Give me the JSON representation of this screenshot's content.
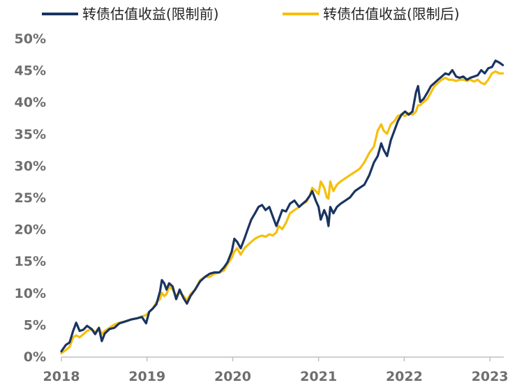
{
  "chart_data": {
    "type": "line",
    "title": "",
    "xlabel": "",
    "ylabel": "",
    "ylim": [
      0,
      50
    ],
    "xlim": [
      "2018-01-01",
      "2023-03-01"
    ],
    "y_tick_values": [
      0,
      5,
      10,
      15,
      20,
      25,
      30,
      35,
      40,
      45,
      50
    ],
    "y_tick_labels": [
      "0%",
      "5%",
      "10%",
      "15%",
      "20%",
      "25%",
      "30%",
      "35%",
      "40%",
      "45%",
      "50%"
    ],
    "x_tick_values": [
      "2018-01-01",
      "2019-01-01",
      "2020-01-01",
      "2021-01-01",
      "2022-01-01",
      "2023-01-01"
    ],
    "x_tick_labels": [
      "2018",
      "2019",
      "2020",
      "2021",
      "2022",
      "2023"
    ],
    "grid": false,
    "legend_position": "top",
    "series": [
      {
        "name": "转债估值收益(限制前)",
        "color": "#1a3461",
        "points": [
          [
            "2018-01-01",
            0.8
          ],
          [
            "2018-01-20",
            1.8
          ],
          [
            "2018-02-05",
            2.2
          ],
          [
            "2018-02-20",
            4.0
          ],
          [
            "2018-03-05",
            5.3
          ],
          [
            "2018-03-20",
            4.0
          ],
          [
            "2018-04-05",
            4.2
          ],
          [
            "2018-04-20",
            4.8
          ],
          [
            "2018-05-10",
            4.3
          ],
          [
            "2018-05-25",
            3.5
          ],
          [
            "2018-06-10",
            4.5
          ],
          [
            "2018-06-22",
            2.4
          ],
          [
            "2018-07-05",
            3.6
          ],
          [
            "2018-07-25",
            4.3
          ],
          [
            "2018-08-15",
            4.5
          ],
          [
            "2018-09-05",
            5.2
          ],
          [
            "2018-10-01",
            5.5
          ],
          [
            "2018-10-25",
            5.8
          ],
          [
            "2018-11-20",
            6.0
          ],
          [
            "2018-12-10",
            6.2
          ],
          [
            "2018-12-28",
            5.2
          ],
          [
            "2019-01-10",
            7.0
          ],
          [
            "2019-01-25",
            7.5
          ],
          [
            "2019-02-10",
            8.2
          ],
          [
            "2019-02-25",
            10.2
          ],
          [
            "2019-03-05",
            12.0
          ],
          [
            "2019-03-15",
            11.5
          ],
          [
            "2019-03-25",
            10.5
          ],
          [
            "2019-04-05",
            11.5
          ],
          [
            "2019-04-20",
            11.0
          ],
          [
            "2019-05-05",
            9.0
          ],
          [
            "2019-05-20",
            10.5
          ],
          [
            "2019-06-05",
            9.2
          ],
          [
            "2019-06-20",
            8.3
          ],
          [
            "2019-07-05",
            9.5
          ],
          [
            "2019-07-25",
            10.5
          ],
          [
            "2019-08-15",
            11.8
          ],
          [
            "2019-09-05",
            12.5
          ],
          [
            "2019-09-25",
            13.0
          ],
          [
            "2019-10-15",
            13.2
          ],
          [
            "2019-11-05",
            13.2
          ],
          [
            "2019-11-25",
            14.0
          ],
          [
            "2019-12-10",
            14.8
          ],
          [
            "2019-12-28",
            16.5
          ],
          [
            "2020-01-08",
            18.5
          ],
          [
            "2020-01-20",
            18.0
          ],
          [
            "2020-02-04",
            17.0
          ],
          [
            "2020-02-20",
            18.5
          ],
          [
            "2020-03-05",
            20.0
          ],
          [
            "2020-03-20",
            21.5
          ],
          [
            "2020-04-05",
            22.5
          ],
          [
            "2020-04-20",
            23.5
          ],
          [
            "2020-05-05",
            23.8
          ],
          [
            "2020-05-20",
            23.0
          ],
          [
            "2020-06-05",
            23.5
          ],
          [
            "2020-06-20",
            22.0
          ],
          [
            "2020-07-05",
            20.5
          ],
          [
            "2020-07-15",
            21.5
          ],
          [
            "2020-07-30",
            23.0
          ],
          [
            "2020-08-15",
            22.8
          ],
          [
            "2020-09-01",
            24.0
          ],
          [
            "2020-09-20",
            24.5
          ],
          [
            "2020-10-10",
            23.5
          ],
          [
            "2020-10-25",
            24.0
          ],
          [
            "2020-11-10",
            24.5
          ],
          [
            "2020-11-25",
            25.3
          ],
          [
            "2020-12-05",
            26.0
          ],
          [
            "2020-12-20",
            24.5
          ],
          [
            "2021-01-01",
            23.5
          ],
          [
            "2021-01-10",
            21.5
          ],
          [
            "2021-01-25",
            23.0
          ],
          [
            "2021-02-05",
            22.0
          ],
          [
            "2021-02-12",
            20.5
          ],
          [
            "2021-02-20",
            23.5
          ],
          [
            "2021-03-05",
            22.5
          ],
          [
            "2021-03-20",
            23.5
          ],
          [
            "2021-04-05",
            24.0
          ],
          [
            "2021-04-25",
            24.5
          ],
          [
            "2021-05-15",
            25.0
          ],
          [
            "2021-06-05",
            26.0
          ],
          [
            "2021-06-25",
            26.5
          ],
          [
            "2021-07-15",
            27.0
          ],
          [
            "2021-08-05",
            28.5
          ],
          [
            "2021-08-25",
            30.5
          ],
          [
            "2021-09-10",
            31.5
          ],
          [
            "2021-09-25",
            33.5
          ],
          [
            "2021-10-05",
            32.5
          ],
          [
            "2021-10-20",
            31.5
          ],
          [
            "2021-11-05",
            34.0
          ],
          [
            "2021-11-20",
            35.5
          ],
          [
            "2021-12-05",
            37.0
          ],
          [
            "2021-12-20",
            38.0
          ],
          [
            "2022-01-05",
            38.5
          ],
          [
            "2022-01-20",
            38.0
          ],
          [
            "2022-02-05",
            38.5
          ],
          [
            "2022-02-20",
            41.5
          ],
          [
            "2022-03-01",
            42.5
          ],
          [
            "2022-03-10",
            40.0
          ],
          [
            "2022-03-25",
            40.5
          ],
          [
            "2022-04-10",
            41.5
          ],
          [
            "2022-04-25",
            42.5
          ],
          [
            "2022-05-10",
            43.0
          ],
          [
            "2022-05-25",
            43.5
          ],
          [
            "2022-06-10",
            44.0
          ],
          [
            "2022-06-25",
            44.5
          ],
          [
            "2022-07-10",
            44.3
          ],
          [
            "2022-07-25",
            45.0
          ],
          [
            "2022-08-10",
            44.0
          ],
          [
            "2022-08-25",
            43.8
          ],
          [
            "2022-09-10",
            44.0
          ],
          [
            "2022-09-25",
            43.5
          ],
          [
            "2022-10-10",
            43.8
          ],
          [
            "2022-10-25",
            44.0
          ],
          [
            "2022-11-10",
            44.2
          ],
          [
            "2022-11-25",
            45.0
          ],
          [
            "2022-12-10",
            44.5
          ],
          [
            "2022-12-25",
            45.3
          ],
          [
            "2023-01-10",
            45.5
          ],
          [
            "2023-01-25",
            46.5
          ],
          [
            "2023-02-10",
            46.2
          ],
          [
            "2023-02-25",
            45.8
          ]
        ]
      },
      {
        "name": "转债估值收益(限制后)",
        "color": "#f5bf0c",
        "points": [
          [
            "2018-01-01",
            0.5
          ],
          [
            "2018-01-20",
            1.0
          ],
          [
            "2018-02-05",
            1.5
          ],
          [
            "2018-02-20",
            3.0
          ],
          [
            "2018-03-05",
            3.3
          ],
          [
            "2018-03-20",
            3.0
          ],
          [
            "2018-04-05",
            3.5
          ],
          [
            "2018-04-20",
            4.0
          ],
          [
            "2018-05-10",
            4.3
          ],
          [
            "2018-05-25",
            3.8
          ],
          [
            "2018-06-10",
            4.5
          ],
          [
            "2018-06-22",
            3.5
          ],
          [
            "2018-07-05",
            4.0
          ],
          [
            "2018-07-25",
            4.5
          ],
          [
            "2018-08-15",
            5.0
          ],
          [
            "2018-09-05",
            5.3
          ],
          [
            "2018-10-01",
            5.5
          ],
          [
            "2018-10-25",
            5.8
          ],
          [
            "2018-11-20",
            6.0
          ],
          [
            "2018-12-10",
            6.3
          ],
          [
            "2018-12-28",
            6.5
          ],
          [
            "2019-01-10",
            7.0
          ],
          [
            "2019-01-25",
            7.5
          ],
          [
            "2019-02-10",
            8.5
          ],
          [
            "2019-02-25",
            9.0
          ],
          [
            "2019-03-05",
            10.0
          ],
          [
            "2019-03-15",
            9.5
          ],
          [
            "2019-03-25",
            9.8
          ],
          [
            "2019-04-05",
            11.0
          ],
          [
            "2019-04-20",
            10.5
          ],
          [
            "2019-05-05",
            9.5
          ],
          [
            "2019-05-20",
            10.0
          ],
          [
            "2019-06-05",
            9.5
          ],
          [
            "2019-06-20",
            8.8
          ],
          [
            "2019-07-05",
            9.8
          ],
          [
            "2019-07-25",
            10.5
          ],
          [
            "2019-08-15",
            12.0
          ],
          [
            "2019-09-05",
            12.5
          ],
          [
            "2019-09-25",
            12.5
          ],
          [
            "2019-10-15",
            13.0
          ],
          [
            "2019-11-05",
            13.2
          ],
          [
            "2019-11-25",
            13.5
          ],
          [
            "2019-12-10",
            14.5
          ],
          [
            "2019-12-28",
            15.5
          ],
          [
            "2020-01-08",
            16.5
          ],
          [
            "2020-01-20",
            17.0
          ],
          [
            "2020-02-04",
            16.0
          ],
          [
            "2020-02-20",
            17.0
          ],
          [
            "2020-03-05",
            17.5
          ],
          [
            "2020-03-20",
            18.0
          ],
          [
            "2020-04-05",
            18.5
          ],
          [
            "2020-04-20",
            18.8
          ],
          [
            "2020-05-05",
            19.0
          ],
          [
            "2020-05-20",
            18.8
          ],
          [
            "2020-06-05",
            19.2
          ],
          [
            "2020-06-20",
            19.0
          ],
          [
            "2020-07-05",
            19.5
          ],
          [
            "2020-07-15",
            20.5
          ],
          [
            "2020-07-30",
            20.0
          ],
          [
            "2020-08-15",
            21.0
          ],
          [
            "2020-09-01",
            22.5
          ],
          [
            "2020-09-20",
            23.0
          ],
          [
            "2020-10-10",
            23.5
          ],
          [
            "2020-10-25",
            24.0
          ],
          [
            "2020-11-10",
            24.3
          ],
          [
            "2020-11-25",
            25.3
          ],
          [
            "2020-12-05",
            26.5
          ],
          [
            "2020-12-20",
            26.0
          ],
          [
            "2021-01-01",
            25.5
          ],
          [
            "2021-01-10",
            27.5
          ],
          [
            "2021-01-25",
            26.5
          ],
          [
            "2021-02-05",
            25.0
          ],
          [
            "2021-02-12",
            24.8
          ],
          [
            "2021-02-20",
            27.5
          ],
          [
            "2021-03-05",
            26.0
          ],
          [
            "2021-03-20",
            27.0
          ],
          [
            "2021-04-05",
            27.5
          ],
          [
            "2021-04-25",
            28.0
          ],
          [
            "2021-05-15",
            28.5
          ],
          [
            "2021-06-05",
            29.0
          ],
          [
            "2021-06-25",
            29.5
          ],
          [
            "2021-07-15",
            30.5
          ],
          [
            "2021-08-05",
            32.0
          ],
          [
            "2021-08-25",
            33.0
          ],
          [
            "2021-09-10",
            35.5
          ],
          [
            "2021-09-25",
            36.5
          ],
          [
            "2021-10-05",
            35.5
          ],
          [
            "2021-10-20",
            35.0
          ],
          [
            "2021-11-05",
            36.5
          ],
          [
            "2021-11-20",
            37.0
          ],
          [
            "2021-12-05",
            37.8
          ],
          [
            "2021-12-20",
            38.0
          ],
          [
            "2022-01-05",
            37.8
          ],
          [
            "2022-01-20",
            38.2
          ],
          [
            "2022-02-05",
            38.0
          ],
          [
            "2022-02-20",
            38.5
          ],
          [
            "2022-03-01",
            39.5
          ],
          [
            "2022-03-10",
            39.5
          ],
          [
            "2022-03-25",
            40.0
          ],
          [
            "2022-04-10",
            40.5
          ],
          [
            "2022-04-25",
            41.5
          ],
          [
            "2022-05-10",
            42.5
          ],
          [
            "2022-05-25",
            43.0
          ],
          [
            "2022-06-10",
            43.5
          ],
          [
            "2022-06-25",
            43.8
          ],
          [
            "2022-07-10",
            43.5
          ],
          [
            "2022-07-25",
            43.5
          ],
          [
            "2022-08-10",
            43.3
          ],
          [
            "2022-08-25",
            43.5
          ],
          [
            "2022-09-10",
            43.5
          ],
          [
            "2022-09-25",
            43.3
          ],
          [
            "2022-10-10",
            43.5
          ],
          [
            "2022-10-25",
            43.2
          ],
          [
            "2022-11-10",
            43.5
          ],
          [
            "2022-11-25",
            43.0
          ],
          [
            "2022-12-10",
            42.8
          ],
          [
            "2022-12-25",
            43.5
          ],
          [
            "2023-01-10",
            44.5
          ],
          [
            "2023-01-25",
            44.8
          ],
          [
            "2023-02-10",
            44.5
          ],
          [
            "2023-02-25",
            44.5
          ]
        ]
      }
    ]
  }
}
